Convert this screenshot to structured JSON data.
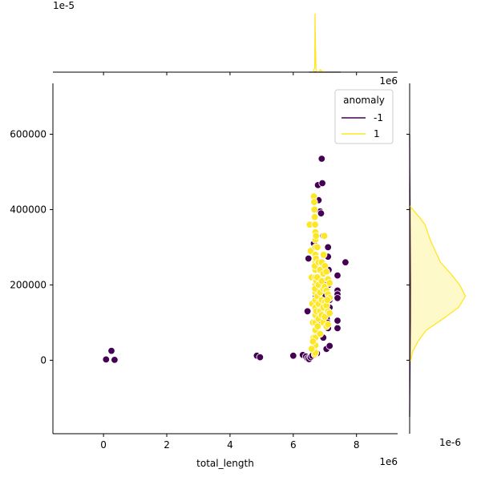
{
  "chart_data": {
    "type": "scatter",
    "subtype": "jointplot",
    "title": "",
    "xlabel": "total_length",
    "ylabel": "",
    "xlim": [
      -1600000,
      9300000
    ],
    "ylim": [
      -195000,
      735000
    ],
    "x_scale_label": "1e6",
    "y_marginal_scale_label": "1e-6",
    "x_marginal_scale_label": "1e-5",
    "corner_scale_label": "1e6",
    "x_ticks": [
      0,
      2000000,
      4000000,
      6000000,
      8000000
    ],
    "x_tick_labels": [
      "0",
      "2",
      "4",
      "6",
      "8"
    ],
    "y_ticks": [
      0,
      200000,
      400000,
      600000
    ],
    "y_tick_labels": [
      "0",
      "200000",
      "400000",
      "600000"
    ],
    "legend": {
      "title": "anomaly",
      "position": "top-right",
      "entries": [
        {
          "label": "-1",
          "color": "#440154"
        },
        {
          "label": "1",
          "color": "#fde725"
        }
      ]
    },
    "hue_name": "anomaly",
    "colors": {
      "-1": "#440154",
      "1": "#fde725",
      "edge": "#ffffff",
      "axis": "#000000"
    },
    "series": [
      {
        "name": "-1",
        "color": "#440154",
        "points": [
          [
            80000,
            2000
          ],
          [
            250000,
            25000
          ],
          [
            350000,
            1000
          ],
          [
            4850000,
            12000
          ],
          [
            4950000,
            8000
          ],
          [
            6000000,
            12000
          ],
          [
            6300000,
            14000
          ],
          [
            6400000,
            10000
          ],
          [
            6450000,
            5000
          ],
          [
            6500000,
            3000
          ],
          [
            6550000,
            8000
          ],
          [
            6600000,
            12000
          ],
          [
            6700000,
            15000
          ],
          [
            6750000,
            18000
          ],
          [
            6450000,
            130000
          ],
          [
            6480000,
            270000
          ],
          [
            6520000,
            360000
          ],
          [
            6650000,
            310000
          ],
          [
            6700000,
            240000
          ],
          [
            6720000,
            170000
          ],
          [
            6750000,
            100000
          ],
          [
            6780000,
            465000
          ],
          [
            6800000,
            425000
          ],
          [
            6850000,
            395000
          ],
          [
            6880000,
            390000
          ],
          [
            6900000,
            535000
          ],
          [
            6920000,
            470000
          ],
          [
            6950000,
            330000
          ],
          [
            6970000,
            250000
          ],
          [
            7000000,
            210000
          ],
          [
            7020000,
            170000
          ],
          [
            7040000,
            150000
          ],
          [
            7050000,
            120000
          ],
          [
            7060000,
            110000
          ],
          [
            7080000,
            100000
          ],
          [
            7090000,
            90000
          ],
          [
            7100000,
            85000
          ],
          [
            7100000,
            300000
          ],
          [
            7100000,
            275000
          ],
          [
            7120000,
            240000
          ],
          [
            7120000,
            200000
          ],
          [
            7150000,
            160000
          ],
          [
            7150000,
            140000
          ],
          [
            7050000,
            30000
          ],
          [
            7150000,
            38000
          ],
          [
            7400000,
            225000
          ],
          [
            7400000,
            185000
          ],
          [
            7400000,
            175000
          ],
          [
            7400000,
            165000
          ],
          [
            7400000,
            105000
          ],
          [
            7400000,
            85000
          ],
          [
            7650000,
            260000
          ],
          [
            6950000,
            60000
          ]
        ]
      },
      {
        "name": "1",
        "color": "#fde725",
        "points": [
          [
            6520000,
            360000
          ],
          [
            6550000,
            290000
          ],
          [
            6580000,
            220000
          ],
          [
            6600000,
            150000
          ],
          [
            6620000,
            100000
          ],
          [
            6640000,
            60000
          ],
          [
            6660000,
            30000
          ],
          [
            6680000,
            15000
          ],
          [
            6650000,
            435000
          ],
          [
            6660000,
            420000
          ],
          [
            6670000,
            400000
          ],
          [
            6680000,
            380000
          ],
          [
            6690000,
            360000
          ],
          [
            6700000,
            340000
          ],
          [
            6700000,
            320000
          ],
          [
            6700000,
            300000
          ],
          [
            6700000,
            280000
          ],
          [
            6700000,
            260000
          ],
          [
            6700000,
            240000
          ],
          [
            6700000,
            220000
          ],
          [
            6700000,
            200000
          ],
          [
            6700000,
            180000
          ],
          [
            6700000,
            160000
          ],
          [
            6700000,
            140000
          ],
          [
            6700000,
            120000
          ],
          [
            6700000,
            100000
          ],
          [
            6700000,
            80000
          ],
          [
            6700000,
            60000
          ],
          [
            6700000,
            40000
          ],
          [
            6700000,
            20000
          ],
          [
            6680000,
            250000
          ],
          [
            6690000,
            190000
          ],
          [
            6720000,
            330000
          ],
          [
            6720000,
            270000
          ],
          [
            6730000,
            210000
          ],
          [
            6730000,
            130000
          ],
          [
            6760000,
            300000
          ],
          [
            6760000,
            220000
          ],
          [
            6760000,
            170000
          ],
          [
            6770000,
            90000
          ],
          [
            6800000,
            260000
          ],
          [
            6800000,
            200000
          ],
          [
            6800000,
            150000
          ],
          [
            6800000,
            110000
          ],
          [
            6850000,
            240000
          ],
          [
            6850000,
            180000
          ],
          [
            6850000,
            130000
          ],
          [
            6850000,
            70000
          ],
          [
            6900000,
            260000
          ],
          [
            6900000,
            210000
          ],
          [
            6900000,
            160000
          ],
          [
            6900000,
            120000
          ],
          [
            6950000,
            230000
          ],
          [
            6950000,
            190000
          ],
          [
            6950000,
            140000
          ],
          [
            6950000,
            100000
          ],
          [
            7000000,
            250000
          ],
          [
            7000000,
            195000
          ],
          [
            7000000,
            155000
          ],
          [
            7000000,
            115000
          ],
          [
            7050000,
            235000
          ],
          [
            7050000,
            185000
          ],
          [
            7050000,
            145000
          ],
          [
            7050000,
            90000
          ],
          [
            7100000,
            215000
          ],
          [
            7100000,
            175000
          ],
          [
            7100000,
            130000
          ],
          [
            7100000,
            95000
          ],
          [
            7150000,
            205000
          ],
          [
            7150000,
            165000
          ],
          [
            7150000,
            125000
          ],
          [
            6580000,
            30000
          ],
          [
            6620000,
            50000
          ],
          [
            6980000,
            330000
          ],
          [
            6960000,
            280000
          ],
          [
            7080000,
            160000
          ]
        ]
      }
    ],
    "marginal_x": [
      {
        "name": "-1",
        "color": "#440154",
        "x": [
          6500000,
          6650000,
          6700000,
          6750000,
          7200000,
          7500000
        ],
        "density": [
          0.0,
          0.0,
          0.01,
          0.0,
          0.0,
          0.0
        ]
      },
      {
        "name": "1",
        "color": "#fde725",
        "x": [
          6550000,
          6620000,
          6680000,
          6690000,
          6700000,
          6720000,
          6750000,
          6800000,
          6860000,
          6900000,
          6950000,
          7050000
        ],
        "density": [
          0.0,
          0.05,
          0.5,
          7.3,
          4.0,
          0.3,
          0.02,
          0.05,
          0.3,
          0.15,
          0.03,
          0.0
        ]
      }
    ],
    "marginal_y": [
      {
        "name": "-1",
        "color": "#440154",
        "y": [
          -150000,
          0,
          100000,
          200000,
          300000,
          400000,
          500000,
          600000
        ],
        "density": [
          0.0,
          0.03,
          0.06,
          0.07,
          0.05,
          0.03,
          0.015,
          0.0
        ]
      },
      {
        "name": "1",
        "color": "#fde725",
        "y": [
          -2000,
          0,
          20000,
          50000,
          80000,
          110000,
          140000,
          170000,
          200000,
          230000,
          260000,
          290000,
          320000,
          360000,
          380000,
          400000,
          410000
        ],
        "density": [
          0.0,
          0.1,
          0.2,
          0.65,
          1.3,
          2.6,
          3.8,
          4.35,
          3.9,
          3.2,
          2.4,
          2.0,
          1.6,
          1.2,
          0.75,
          0.25,
          0.0
        ]
      }
    ]
  }
}
